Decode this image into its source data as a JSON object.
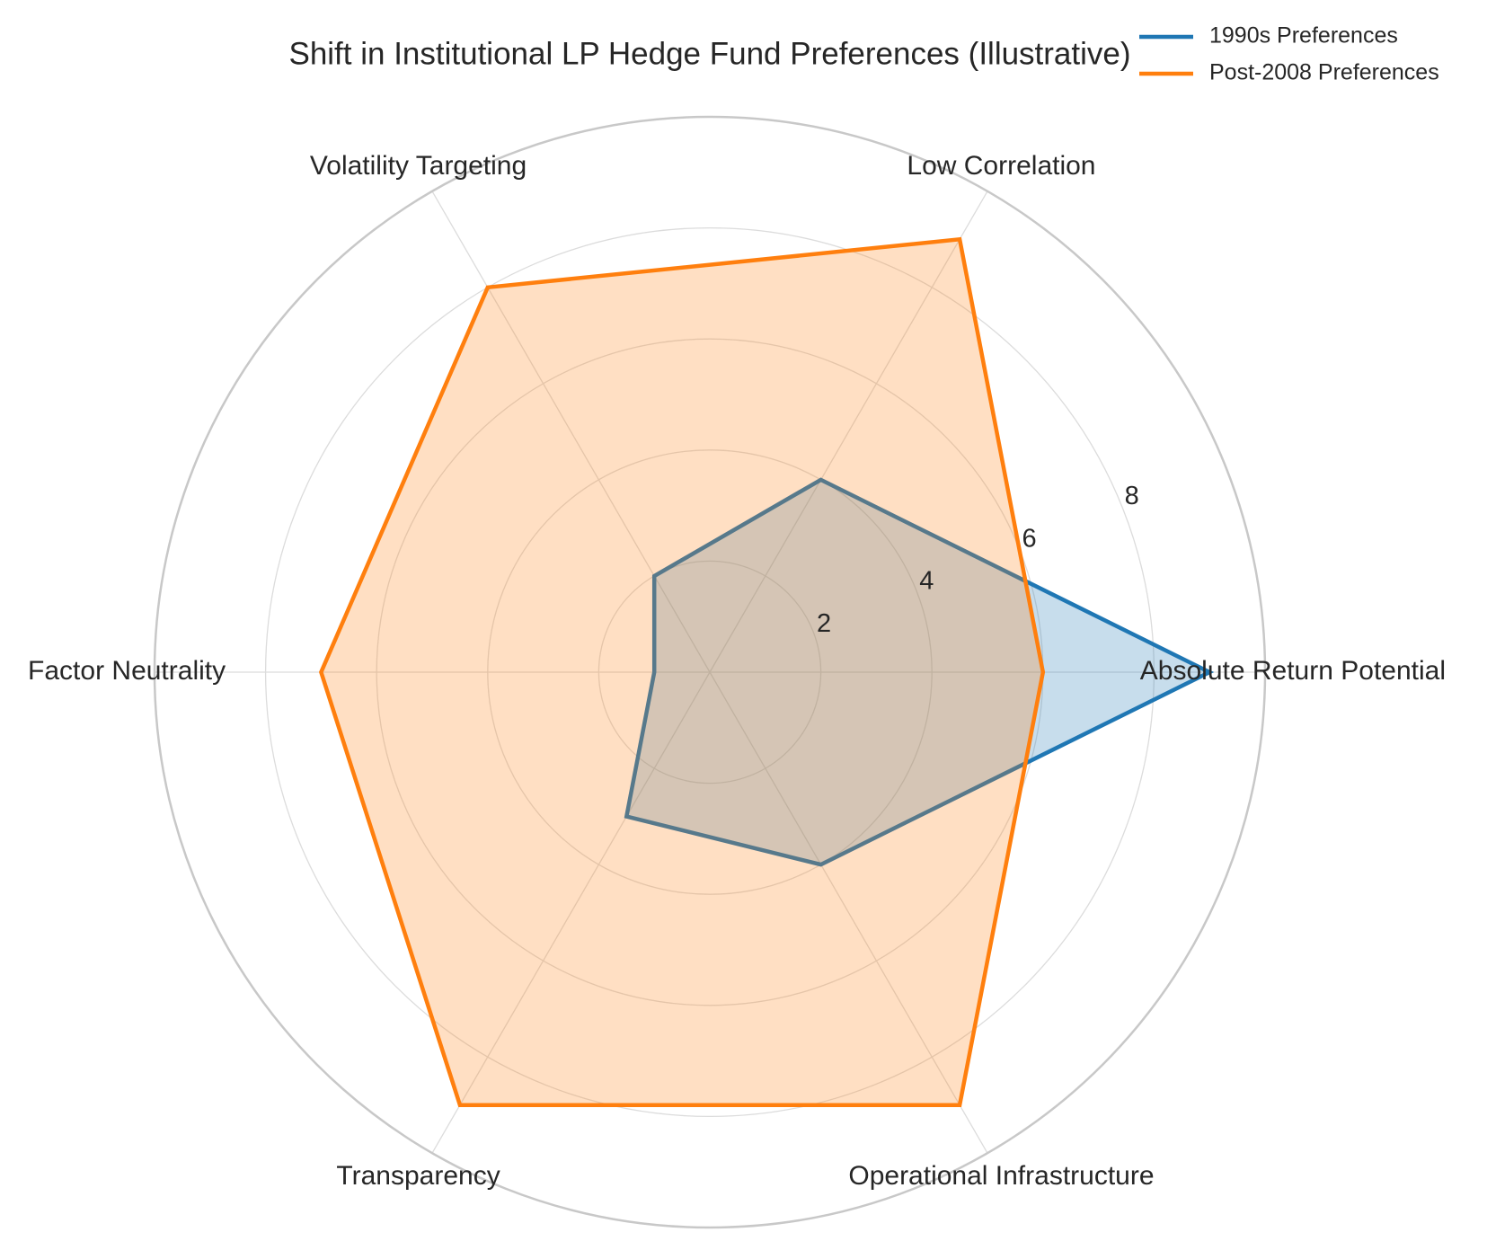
{
  "chart_data": {
    "type": "radar",
    "title": "Shift in Institutional LP Hedge Fund Preferences (Illustrative)",
    "categories": [
      "Absolute Return Potential",
      "Low Correlation",
      "Volatility Targeting",
      "Factor Neutrality",
      "Transparency",
      "Operational Infrastructure"
    ],
    "series": [
      {
        "name": "1990s Preferences",
        "color": "#1f77b4",
        "values": [
          9,
          4,
          2,
          1,
          3,
          4
        ]
      },
      {
        "name": "Post-2008 Preferences",
        "color": "#ff7f0e",
        "values": [
          6,
          9,
          8,
          7,
          9,
          9
        ]
      }
    ],
    "ylim": [
      0,
      10
    ],
    "yticks": [
      2,
      4,
      6,
      8
    ],
    "grid": true,
    "legend": "upper right"
  }
}
